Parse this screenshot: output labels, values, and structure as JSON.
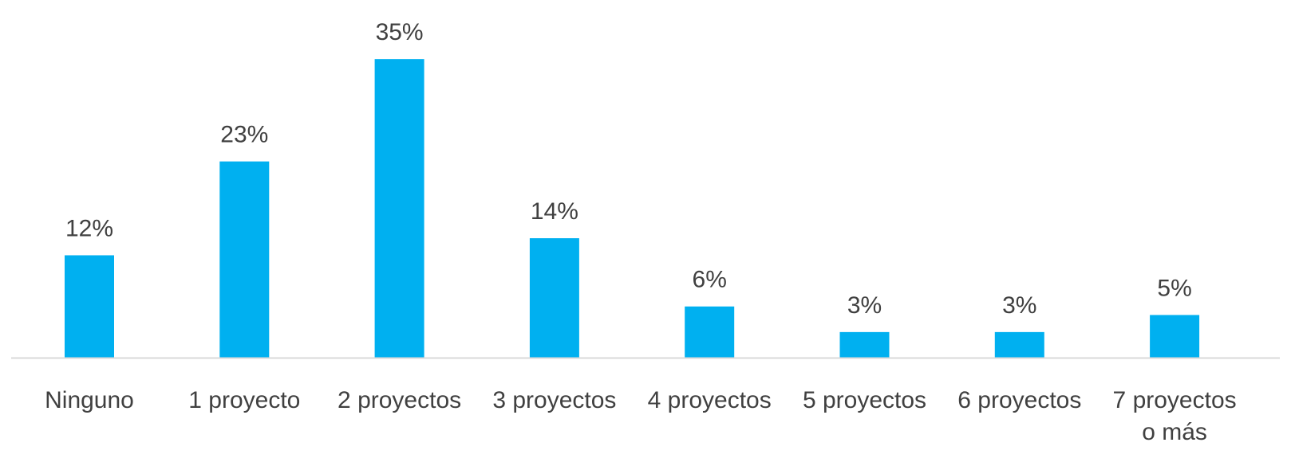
{
  "chart_data": {
    "type": "bar",
    "title": "",
    "xlabel": "",
    "ylabel": "",
    "categories": [
      [
        "Ninguno"
      ],
      [
        "1 proyecto"
      ],
      [
        "2 proyectos"
      ],
      [
        "3 proyectos"
      ],
      [
        "4 proyectos"
      ],
      [
        "5 proyectos"
      ],
      [
        "6 proyectos"
      ],
      [
        "7 proyectos",
        "o más"
      ]
    ],
    "values": [
      12,
      23,
      35,
      14,
      6,
      3,
      3,
      5
    ],
    "value_labels": [
      "12%",
      "23%",
      "35%",
      "14%",
      "6%",
      "3%",
      "3%",
      "5%"
    ],
    "unit": "%",
    "ylim": [
      0,
      35
    ],
    "grid": false,
    "legend": "none",
    "colors": {
      "bar": "#00B0F0",
      "axis": "#D9D9D9",
      "text": "#404040"
    }
  }
}
